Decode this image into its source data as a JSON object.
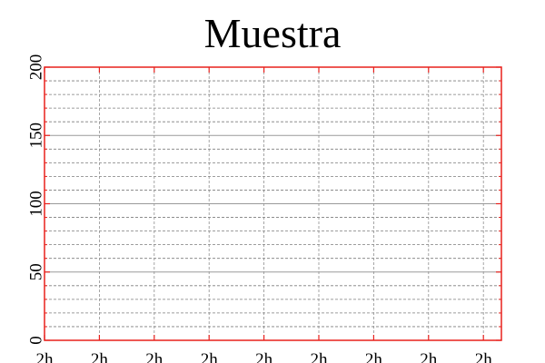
{
  "chart_data": {
    "type": "line",
    "title": "Muestra",
    "xlabel": "",
    "ylabel": "",
    "ylim": [
      0,
      200
    ],
    "y_major_ticks": [
      0,
      50,
      100,
      150,
      200
    ],
    "y_tick_labels": [
      "0",
      "50",
      "100",
      "150",
      "200"
    ],
    "y_minor_step": 10,
    "x_tick_labels": [
      "2h",
      "2h",
      "2h",
      "2h",
      "2h",
      "2h",
      "2h",
      "2h",
      "2h"
    ],
    "grid": true,
    "series": [],
    "colors": {
      "frame": "#e8201c",
      "grid_major": "#9a9a9a",
      "grid_minor": "#7d7d7d",
      "grid_vertical": "#8f8f8f",
      "text": "#000000"
    }
  }
}
